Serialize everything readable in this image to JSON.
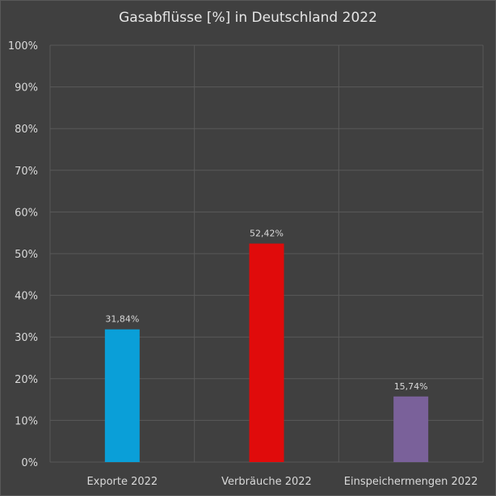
{
  "chart_data": {
    "type": "bar",
    "title": "Gasabflüsse [%] in Deutschland 2022",
    "categories": [
      "Exporte 2022",
      "Verbräuche 2022",
      "Einspeichermengen 2022"
    ],
    "values": [
      31.84,
      52.42,
      15.74
    ],
    "data_labels": [
      "31,84%",
      "52,42%",
      "15,74%"
    ],
    "colors": [
      "#0a9fd8",
      "#e00b0b",
      "#7a619a"
    ],
    "ylim": [
      0,
      100
    ],
    "yticks": [
      0,
      10,
      20,
      30,
      40,
      50,
      60,
      70,
      80,
      90,
      100
    ],
    "ytick_labels": [
      "0%",
      "10%",
      "20%",
      "30%",
      "40%",
      "50%",
      "60%",
      "70%",
      "80%",
      "90%",
      "100%"
    ],
    "grid": true,
    "xlabel": "",
    "ylabel": ""
  }
}
